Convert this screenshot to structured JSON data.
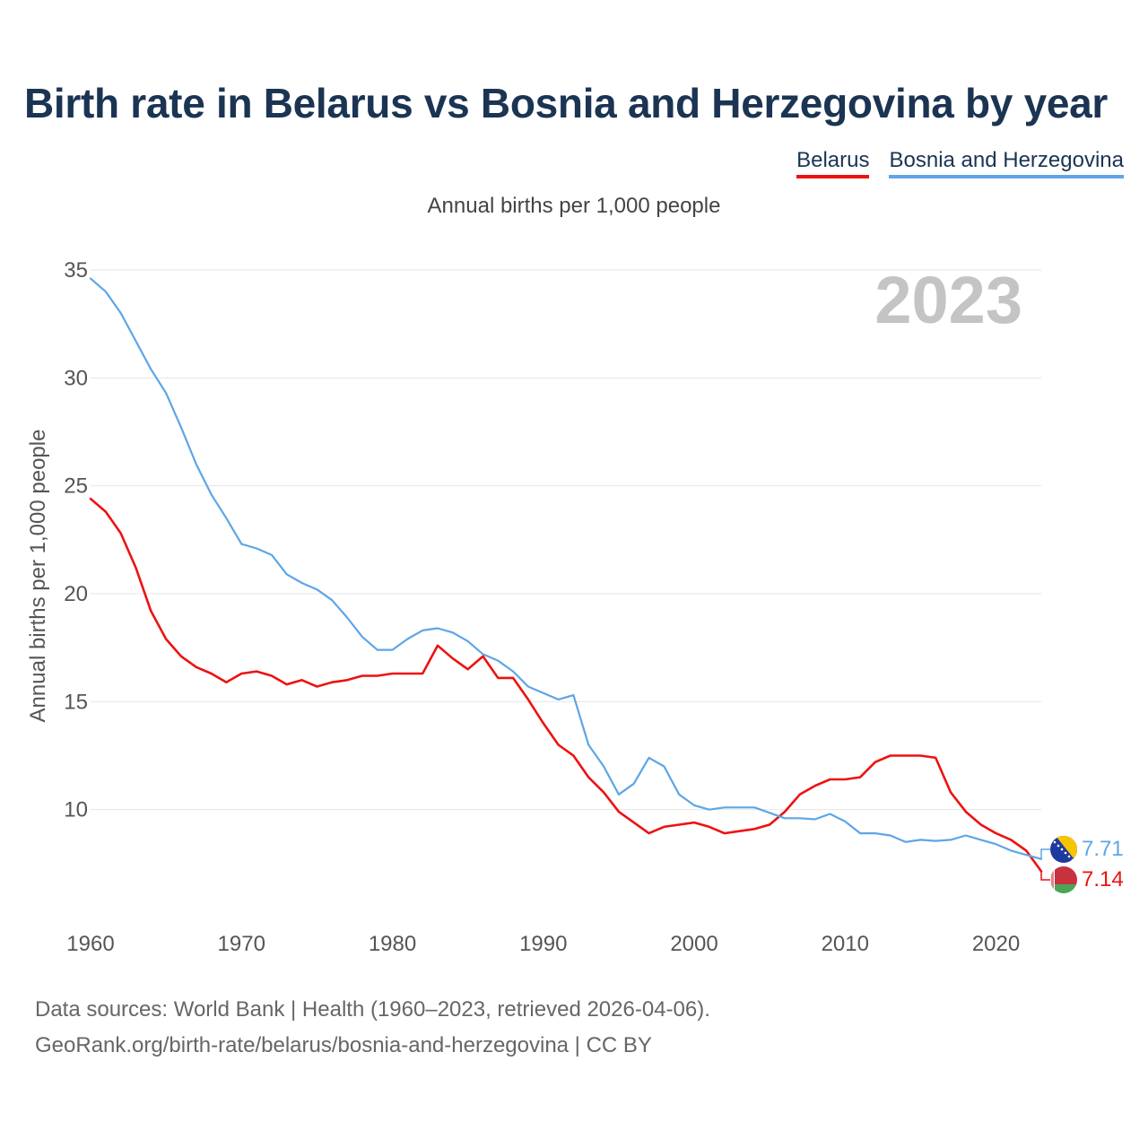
{
  "title": "Birth rate in Belarus vs Bosnia and Herzegovina by year",
  "subtitle": "Annual births per 1,000 people",
  "watermark_year": "2023",
  "legend": [
    {
      "label": "Belarus",
      "color": "#ee1111"
    },
    {
      "label": "Bosnia and Herzegovina",
      "color": "#5ea5e6"
    }
  ],
  "source_line1": "Data sources: World Bank | Health (1960–2023, retrieved 2026-04-06).",
  "source_line2": "GeoRank.org/birth-rate/belarus/bosnia-and-herzegovina | CC BY",
  "chart_data": {
    "type": "line",
    "title": "Birth rate in Belarus vs Bosnia and Herzegovina by year",
    "xlabel": "",
    "ylabel": "Annual births per 1,000 people",
    "xlim": [
      1960,
      2023
    ],
    "ylim": [
      5,
      35
    ],
    "xticks": [
      1960,
      1970,
      1980,
      1990,
      2000,
      2010,
      2020
    ],
    "yticks": [
      10,
      15,
      20,
      25,
      30,
      35
    ],
    "grid": true,
    "x": [
      1960,
      1961,
      1962,
      1963,
      1964,
      1965,
      1966,
      1967,
      1968,
      1969,
      1970,
      1971,
      1972,
      1973,
      1974,
      1975,
      1976,
      1977,
      1978,
      1979,
      1980,
      1981,
      1982,
      1983,
      1984,
      1985,
      1986,
      1987,
      1988,
      1989,
      1990,
      1991,
      1992,
      1993,
      1994,
      1995,
      1996,
      1997,
      1998,
      1999,
      2000,
      2001,
      2002,
      2003,
      2004,
      2005,
      2006,
      2007,
      2008,
      2009,
      2010,
      2011,
      2012,
      2013,
      2014,
      2015,
      2016,
      2017,
      2018,
      2019,
      2020,
      2021,
      2022,
      2023
    ],
    "series": [
      {
        "name": "Belarus",
        "color": "#ee1111",
        "end_label": "7.14",
        "values": [
          24.4,
          23.8,
          22.8,
          21.2,
          19.2,
          17.9,
          17.1,
          16.6,
          16.3,
          15.9,
          16.3,
          16.4,
          16.2,
          15.8,
          16.0,
          15.7,
          15.9,
          16.0,
          16.2,
          16.2,
          16.3,
          16.3,
          16.3,
          17.6,
          17.0,
          16.5,
          17.1,
          16.1,
          16.1,
          15.1,
          14.0,
          13.0,
          12.5,
          11.5,
          10.8,
          9.9,
          9.4,
          8.9,
          9.2,
          9.3,
          9.4,
          9.2,
          8.9,
          9.0,
          9.1,
          9.3,
          9.9,
          10.7,
          11.1,
          11.4,
          11.4,
          11.5,
          12.2,
          12.5,
          12.5,
          12.5,
          12.4,
          10.8,
          9.9,
          9.3,
          8.9,
          8.6,
          8.1,
          7.14
        ]
      },
      {
        "name": "Bosnia and Herzegovina",
        "color": "#5ea5e6",
        "end_label": "7.71",
        "values": [
          34.6,
          34.0,
          33.0,
          31.7,
          30.4,
          29.3,
          27.7,
          26.0,
          24.6,
          23.5,
          22.3,
          22.1,
          21.8,
          20.9,
          20.5,
          20.2,
          19.7,
          18.9,
          18.0,
          17.4,
          17.4,
          17.9,
          18.3,
          18.4,
          18.2,
          17.8,
          17.2,
          16.9,
          16.4,
          15.7,
          15.4,
          15.1,
          15.3,
          13.0,
          12.0,
          10.7,
          11.2,
          12.4,
          12.0,
          10.7,
          10.2,
          10.0,
          10.1,
          10.1,
          10.1,
          9.85,
          9.6,
          9.6,
          9.55,
          9.8,
          9.45,
          8.9,
          8.9,
          8.8,
          8.5,
          8.6,
          8.55,
          8.6,
          8.8,
          8.6,
          8.4,
          8.1,
          7.9,
          7.71
        ]
      }
    ]
  }
}
